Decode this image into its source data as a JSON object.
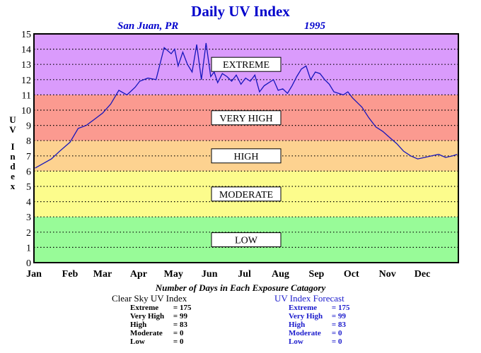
{
  "chart_data": {
    "type": "line",
    "title": "Daily UV Index",
    "subtitle_location": "San Juan, PR",
    "subtitle_year": "1995",
    "ylabel": "UV Index",
    "ylim": [
      0,
      15
    ],
    "xlim": [
      0,
      365
    ],
    "yticks": [
      0,
      1,
      2,
      3,
      4,
      5,
      6,
      7,
      8,
      9,
      10,
      11,
      12,
      13,
      14,
      15
    ],
    "month_labels": [
      "Jan",
      "Feb",
      "Mar",
      "Apr",
      "May",
      "Jun",
      "Jul",
      "Aug",
      "Sep",
      "Oct",
      "Nov",
      "Dec"
    ],
    "grid": true,
    "bands": [
      {
        "label": "LOW",
        "from": 0,
        "to": 3,
        "color": "#98fb98"
      },
      {
        "label": "MODERATE",
        "from": 3,
        "to": 6,
        "color": "#fcfc8c"
      },
      {
        "label": "HIGH",
        "from": 6,
        "to": 8,
        "color": "#fdd290"
      },
      {
        "label": "VERY HIGH",
        "from": 8,
        "to": 11,
        "color": "#fb9a90"
      },
      {
        "label": "EXTREME",
        "from": 11,
        "to": 15,
        "color": "#da9bfc"
      }
    ],
    "series": [
      {
        "color": "#1515bb",
        "x": [
          1,
          8,
          15,
          22,
          31,
          38,
          45,
          52,
          59,
          66,
          73,
          80,
          87,
          91,
          98,
          105,
          112,
          118,
          121,
          124,
          128,
          132,
          136,
          140,
          144,
          148,
          152,
          155,
          158,
          162,
          166,
          170,
          174,
          178,
          182,
          186,
          190,
          194,
          198,
          202,
          206,
          210,
          214,
          218,
          222,
          226,
          230,
          234,
          238,
          242,
          246,
          250,
          254,
          258,
          262,
          266,
          270,
          274,
          278,
          282,
          288,
          294,
          300,
          306,
          312,
          318,
          324,
          330,
          336,
          342,
          348,
          354,
          360,
          364
        ],
        "y": [
          6.2,
          6.5,
          6.8,
          7.3,
          7.9,
          8.8,
          9.0,
          9.4,
          9.8,
          10.4,
          11.3,
          11.0,
          11.5,
          11.9,
          12.1,
          12.0,
          14.1,
          13.7,
          14.0,
          12.9,
          13.8,
          13.0,
          12.5,
          14.3,
          12.0,
          14.4,
          12.2,
          12.5,
          11.8,
          12.4,
          12.2,
          11.9,
          12.3,
          11.7,
          12.1,
          11.9,
          12.3,
          11.2,
          11.6,
          11.8,
          12.0,
          11.3,
          11.4,
          11.1,
          11.6,
          12.2,
          12.7,
          12.9,
          12.0,
          12.5,
          12.4,
          12.0,
          11.7,
          11.2,
          11.1,
          11.0,
          11.2,
          10.8,
          10.5,
          10.2,
          9.5,
          8.9,
          8.6,
          8.2,
          7.8,
          7.3,
          7.0,
          6.8,
          6.9,
          7.0,
          7.1,
          6.9,
          7.0,
          7.1
        ]
      }
    ],
    "summary_title": "Number of Days in Each Exposure Catagory",
    "tables": [
      {
        "title": "Clear Sky UV Index",
        "color": "#000000",
        "rows": [
          {
            "name": "Extreme",
            "days": "175"
          },
          {
            "name": "Very High",
            "days": "99"
          },
          {
            "name": "High",
            "days": "83"
          },
          {
            "name": "Moderate",
            "days": "0"
          },
          {
            "name": "Low",
            "days": "0"
          }
        ]
      },
      {
        "title": "UV Index Forecast",
        "color": "#1a1acc",
        "rows": [
          {
            "name": "Extreme",
            "days": "175"
          },
          {
            "name": "Very High",
            "days": "99"
          },
          {
            "name": "High",
            "days": "83"
          },
          {
            "name": "Moderate",
            "days": "0"
          },
          {
            "name": "Low",
            "days": "0"
          }
        ]
      }
    ]
  }
}
